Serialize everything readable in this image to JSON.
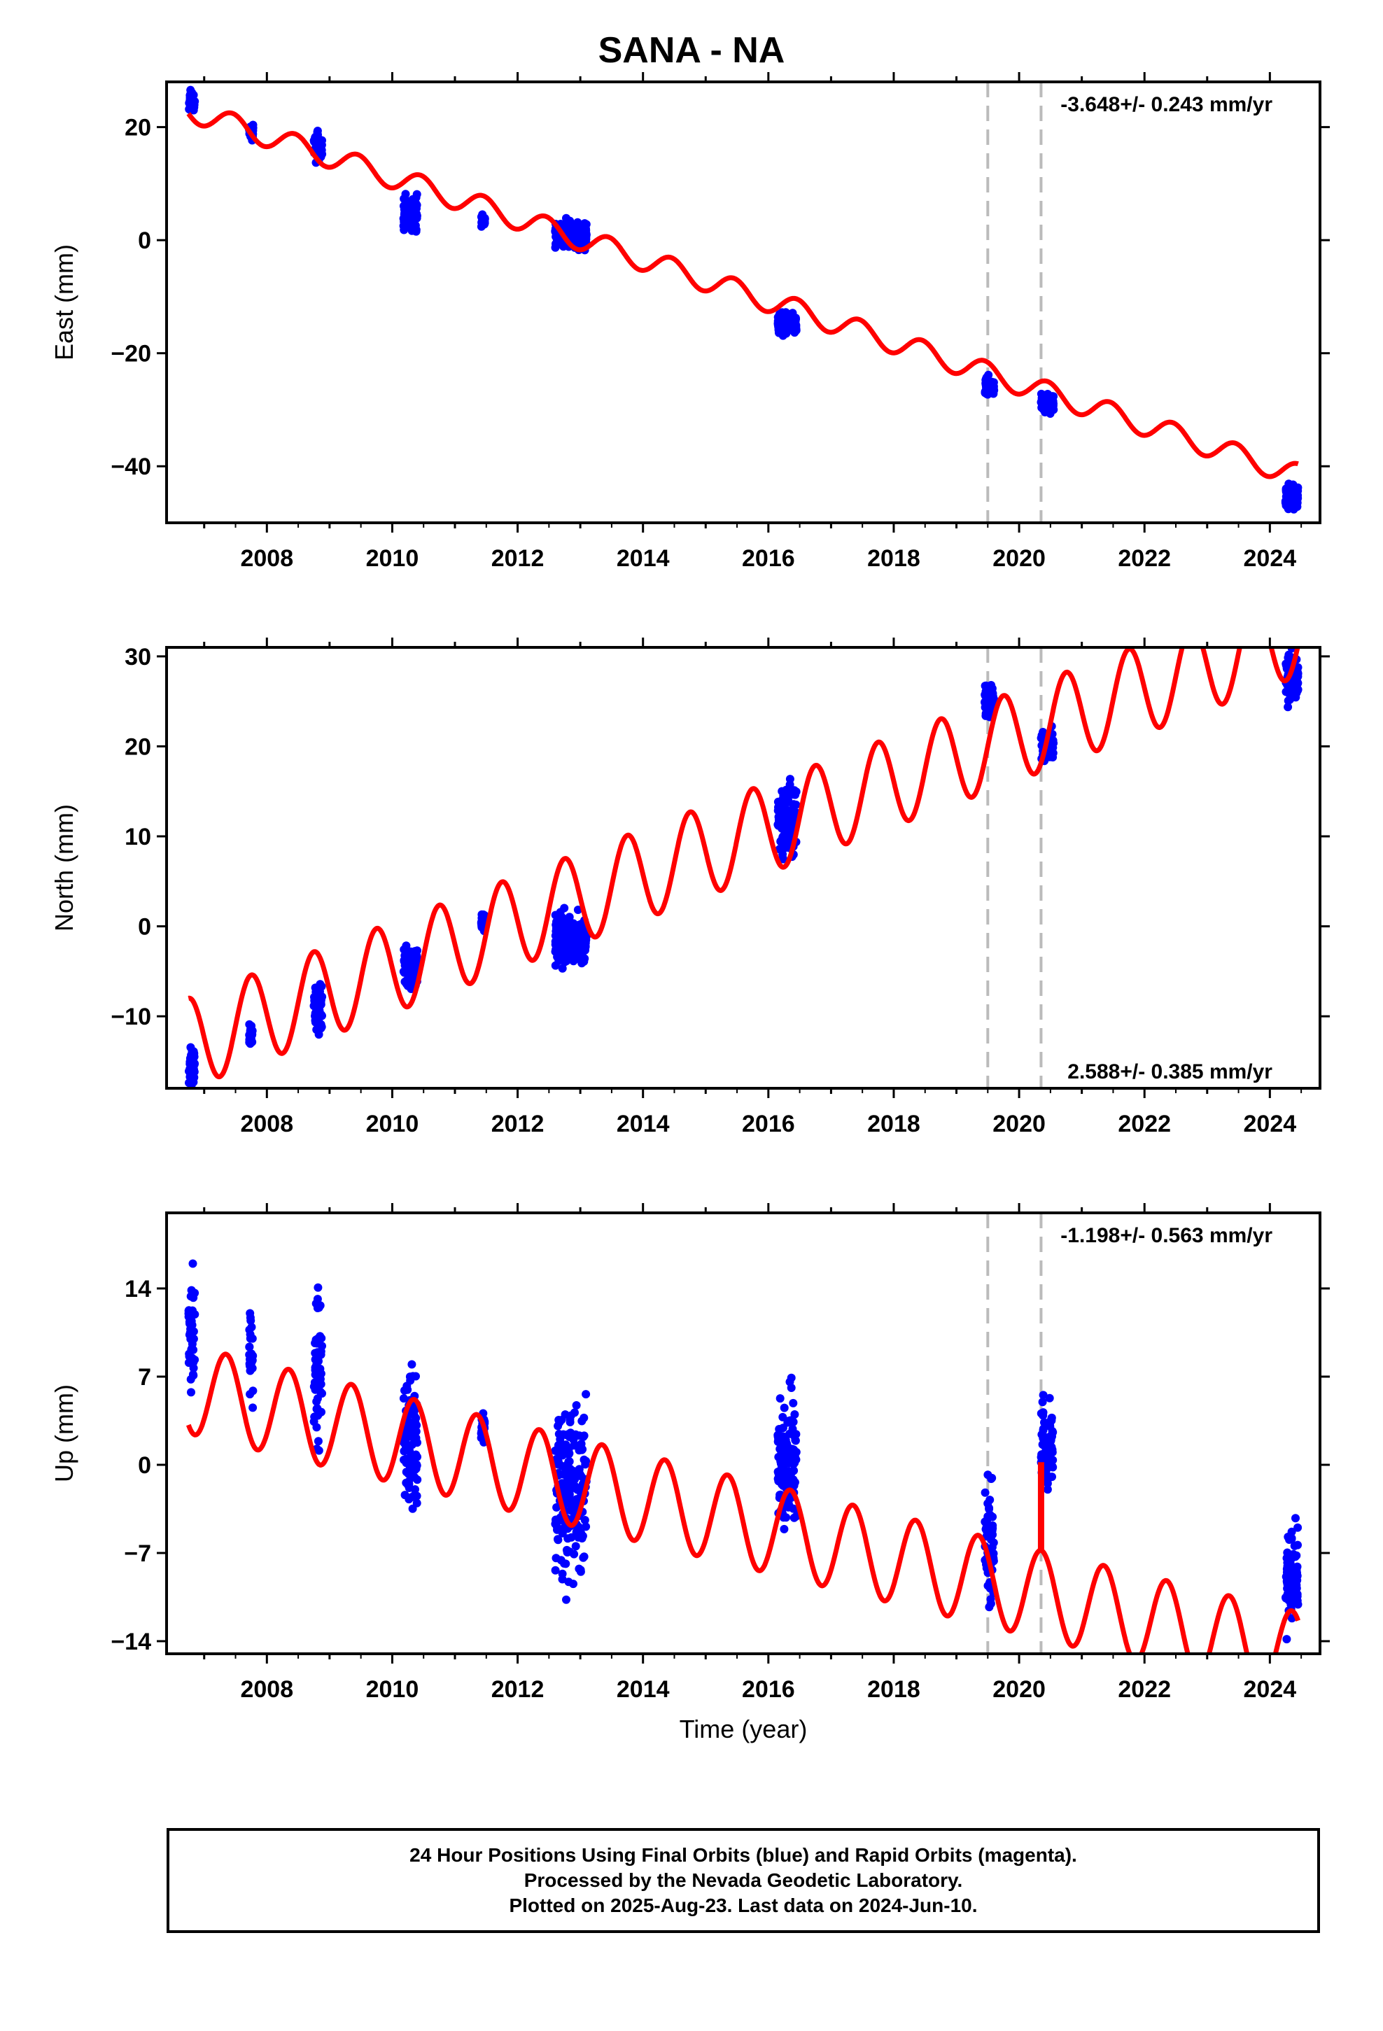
{
  "chart_title": "SANA - NA",
  "footer": {
    "line1": "24 Hour Positions Using Final Orbits (blue) and Rapid Orbits (magenta).",
    "line2": "Processed by the Nevada Geodetic Laboratory.",
    "line3": "Plotted on 2025-Aug-23. Last data on 2024-Jun-10."
  },
  "colors": {
    "final_orbits": "#0000ff",
    "model": "#ff0000",
    "event_lines": "#bbbbbb"
  },
  "chart_data": [
    {
      "type": "scatter",
      "panel": "East",
      "ylabel": "East (mm)",
      "xlabel": "",
      "rate_label": "-3.648+/- 0.243 mm/yr",
      "rate_position": "top-right",
      "xlim": [
        2006.4,
        2024.8
      ],
      "ylim": [
        -50,
        28
      ],
      "xticks": [
        2008,
        2010,
        2012,
        2014,
        2016,
        2018,
        2020,
        2022,
        2024
      ],
      "yticks": [
        20,
        0,
        -20,
        -40
      ],
      "event_lines": [
        2019.5,
        2020.35
      ],
      "model": {
        "slope": -3.648,
        "offset": 23.0,
        "annual_amplitude": 2.0,
        "annual_phase_year": 2007.2,
        "steps": []
      },
      "observation_clusters": [
        {
          "start": 2006.75,
          "end": 2006.85,
          "mean": 24.5,
          "spread": 1.5
        },
        {
          "start": 2007.72,
          "end": 2007.78,
          "mean": 19.0,
          "spread": 1.0
        },
        {
          "start": 2008.75,
          "end": 2008.88,
          "mean": 16.5,
          "spread": 2.0
        },
        {
          "start": 2010.18,
          "end": 2010.4,
          "mean": 5.0,
          "spread": 2.5
        },
        {
          "start": 2011.42,
          "end": 2011.48,
          "mean": 3.5,
          "spread": 0.8
        },
        {
          "start": 2012.6,
          "end": 2013.1,
          "mean": 1.0,
          "spread": 1.8
        },
        {
          "start": 2016.15,
          "end": 2016.45,
          "mean": -15.0,
          "spread": 1.5
        },
        {
          "start": 2019.45,
          "end": 2019.6,
          "mean": -25.8,
          "spread": 1.3
        },
        {
          "start": 2020.35,
          "end": 2020.55,
          "mean": -29.0,
          "spread": 1.2
        },
        {
          "start": 2024.25,
          "end": 2024.45,
          "mean": -45.5,
          "spread": 1.8
        }
      ]
    },
    {
      "type": "scatter",
      "panel": "North",
      "ylabel": "North (mm)",
      "xlabel": "",
      "rate_label": "2.588+/- 0.385 mm/yr",
      "rate_position": "bottom-right",
      "xlim": [
        2006.4,
        2024.8
      ],
      "ylim": [
        -18,
        31
      ],
      "xticks": [
        2008,
        2010,
        2012,
        2014,
        2016,
        2018,
        2020,
        2022,
        2024
      ],
      "yticks": [
        30,
        20,
        10,
        0,
        -10
      ],
      "event_lines": [
        2019.5,
        2020.35
      ],
      "model": {
        "slope": 2.588,
        "offset": -13.0,
        "annual_amplitude": 5.0,
        "annual_phase_year": 2007.5,
        "steps": []
      },
      "observation_clusters": [
        {
          "start": 2006.75,
          "end": 2006.85,
          "mean": -15.5,
          "spread": 1.5
        },
        {
          "start": 2007.72,
          "end": 2007.78,
          "mean": -12.0,
          "spread": 1.0
        },
        {
          "start": 2008.75,
          "end": 2008.88,
          "mean": -9.0,
          "spread": 2.5
        },
        {
          "start": 2010.18,
          "end": 2010.4,
          "mean": -4.5,
          "spread": 2.0
        },
        {
          "start": 2011.42,
          "end": 2011.48,
          "mean": 0.5,
          "spread": 0.8
        },
        {
          "start": 2012.6,
          "end": 2013.1,
          "mean": -1.5,
          "spread": 2.0
        },
        {
          "start": 2016.15,
          "end": 2016.45,
          "mean": 12.0,
          "spread": 3.0
        },
        {
          "start": 2019.45,
          "end": 2019.6,
          "mean": 25.0,
          "spread": 1.5
        },
        {
          "start": 2020.35,
          "end": 2020.55,
          "mean": 20.0,
          "spread": 1.5
        },
        {
          "start": 2024.25,
          "end": 2024.45,
          "mean": 27.5,
          "spread": 2.0
        }
      ]
    },
    {
      "type": "scatter",
      "panel": "Up",
      "ylabel": "Up (mm)",
      "xlabel": "Time (year)",
      "rate_label": "-1.198+/- 0.563 mm/yr",
      "rate_position": "top-right",
      "xlim": [
        2006.4,
        2024.8
      ],
      "ylim": [
        -15,
        20
      ],
      "xticks": [
        2008,
        2010,
        2012,
        2014,
        2016,
        2018,
        2020,
        2022,
        2024
      ],
      "yticks": [
        14,
        7,
        0,
        -7,
        -14
      ],
      "event_lines": [
        2019.5,
        2020.35
      ],
      "model": {
        "slope": -1.198,
        "offset": 6.0,
        "annual_amplitude": 3.5,
        "annual_phase_year": 2007.1,
        "steps": [
          {
            "year": 2020.35,
            "size": 7.0
          }
        ]
      },
      "observation_clusters": [
        {
          "start": 2006.75,
          "end": 2006.85,
          "mean": 10.0,
          "spread": 3.5
        },
        {
          "start": 2007.72,
          "end": 2007.78,
          "mean": 9.0,
          "spread": 3.0
        },
        {
          "start": 2008.75,
          "end": 2008.88,
          "mean": 8.0,
          "spread": 5.0
        },
        {
          "start": 2010.18,
          "end": 2010.4,
          "mean": 2.0,
          "spread": 5.0
        },
        {
          "start": 2011.42,
          "end": 2011.48,
          "mean": 3.0,
          "spread": 0.8
        },
        {
          "start": 2012.6,
          "end": 2013.1,
          "mean": -2.0,
          "spread": 5.5
        },
        {
          "start": 2016.15,
          "end": 2016.45,
          "mean": 0.0,
          "spread": 4.0
        },
        {
          "start": 2019.45,
          "end": 2019.6,
          "mean": -6.0,
          "spread": 4.0
        },
        {
          "start": 2020.35,
          "end": 2020.55,
          "mean": 1.5,
          "spread": 3.0
        },
        {
          "start": 2024.25,
          "end": 2024.45,
          "mean": -9.0,
          "spread": 3.5
        }
      ]
    }
  ]
}
